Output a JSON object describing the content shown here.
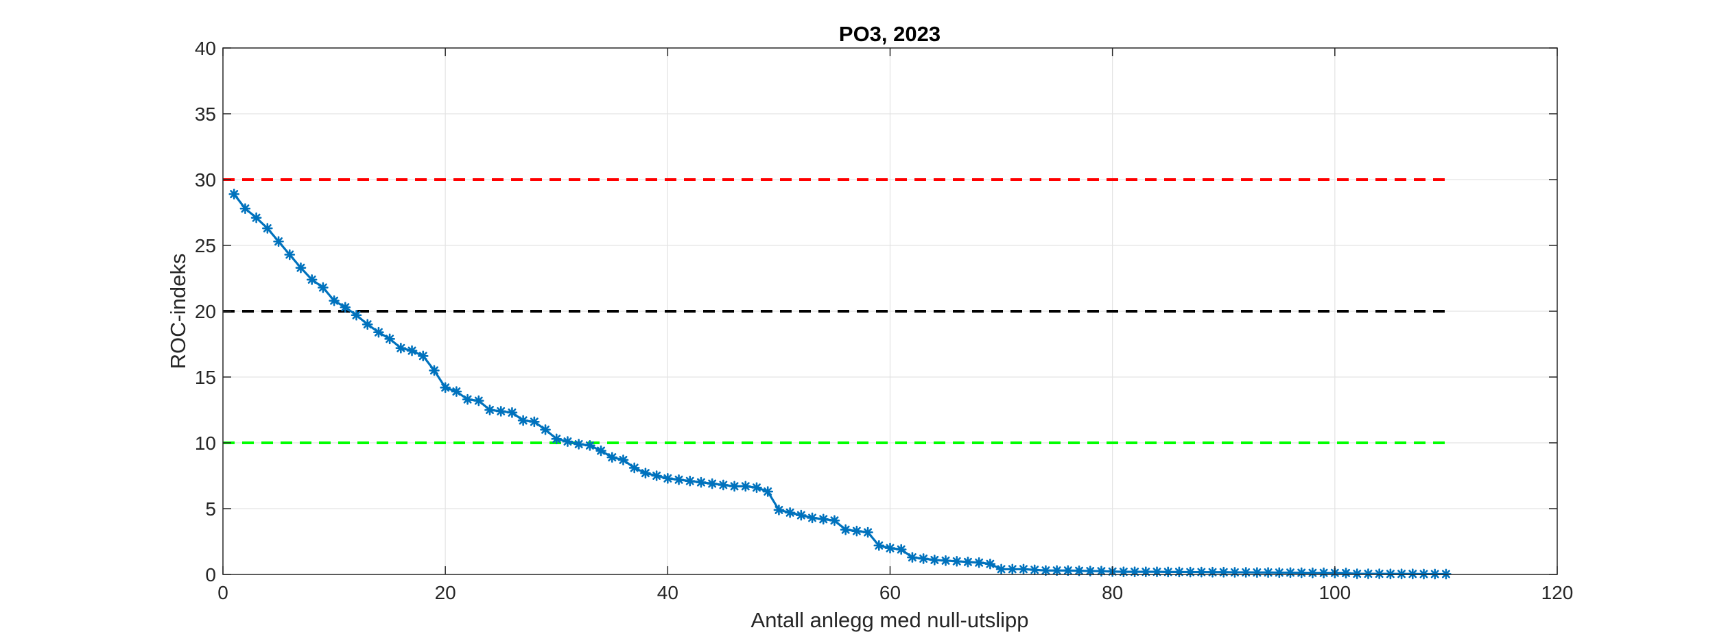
{
  "chart_data": {
    "type": "line",
    "title": "PO3, 2023",
    "xlabel": "Antall anlegg med null-utslipp",
    "ylabel": "ROC-indeks",
    "xlim": [
      0,
      120
    ],
    "ylim": [
      0,
      40
    ],
    "xticks": [
      0,
      20,
      40,
      60,
      80,
      100,
      120
    ],
    "yticks": [
      0,
      5,
      10,
      15,
      20,
      25,
      30,
      35,
      40
    ],
    "grid": true,
    "series": [
      {
        "name": "ROC-indeks",
        "color": "#0072BD",
        "marker": "asterisk",
        "x": [
          1,
          2,
          3,
          4,
          5,
          6,
          7,
          8,
          9,
          10,
          11,
          12,
          13,
          14,
          15,
          16,
          17,
          18,
          19,
          20,
          21,
          22,
          23,
          24,
          25,
          26,
          27,
          28,
          29,
          30,
          31,
          32,
          33,
          34,
          35,
          36,
          37,
          38,
          39,
          40,
          41,
          42,
          43,
          44,
          45,
          46,
          47,
          48,
          49,
          50,
          51,
          52,
          53,
          54,
          55,
          56,
          57,
          58,
          59,
          60,
          61,
          62,
          63,
          64,
          65,
          66,
          67,
          68,
          69,
          70,
          71,
          72,
          73,
          74,
          75,
          76,
          77,
          78,
          79,
          80,
          81,
          82,
          83,
          84,
          85,
          86,
          87,
          88,
          89,
          90,
          91,
          92,
          93,
          94,
          95,
          96,
          97,
          98,
          99,
          100,
          101,
          102,
          103,
          104,
          105,
          106,
          107,
          108,
          109,
          110
        ],
        "y": [
          28.9,
          27.8,
          27.1,
          26.3,
          25.3,
          24.3,
          23.3,
          22.4,
          21.8,
          20.8,
          20.3,
          19.7,
          19.0,
          18.4,
          17.9,
          17.2,
          17.0,
          16.6,
          15.5,
          14.2,
          13.9,
          13.3,
          13.2,
          12.5,
          12.4,
          12.3,
          11.7,
          11.6,
          11.0,
          10.3,
          10.1,
          9.9,
          9.8,
          9.4,
          8.9,
          8.7,
          8.1,
          7.7,
          7.5,
          7.3,
          7.2,
          7.1,
          7.0,
          6.9,
          6.8,
          6.7,
          6.7,
          6.6,
          6.3,
          4.9,
          4.7,
          4.5,
          4.3,
          4.2,
          4.1,
          3.4,
          3.3,
          3.2,
          2.2,
          2.0,
          1.9,
          1.3,
          1.2,
          1.1,
          1.05,
          1.0,
          0.95,
          0.9,
          0.8,
          0.4,
          0.4,
          0.4,
          0.35,
          0.3,
          0.3,
          0.3,
          0.28,
          0.26,
          0.25,
          0.22,
          0.2,
          0.2,
          0.2,
          0.2,
          0.19,
          0.19,
          0.18,
          0.18,
          0.17,
          0.17,
          0.16,
          0.16,
          0.15,
          0.15,
          0.14,
          0.14,
          0.13,
          0.12,
          0.12,
          0.12,
          0.11,
          0.05,
          0.05,
          0.05,
          0.04,
          0.04,
          0.04,
          0.03,
          0.03,
          0.03
        ]
      }
    ],
    "reference_lines": [
      {
        "name": "reference-line-30",
        "y": 30,
        "x_range": [
          0,
          110
        ],
        "color": "#FF0000",
        "style": "dashed"
      },
      {
        "name": "reference-line-20",
        "y": 20,
        "x_range": [
          0,
          110
        ],
        "color": "#000000",
        "style": "dashed"
      },
      {
        "name": "reference-line-10",
        "y": 10,
        "x_range": [
          0,
          110
        ],
        "color": "#00FF00",
        "style": "dashed"
      }
    ]
  }
}
